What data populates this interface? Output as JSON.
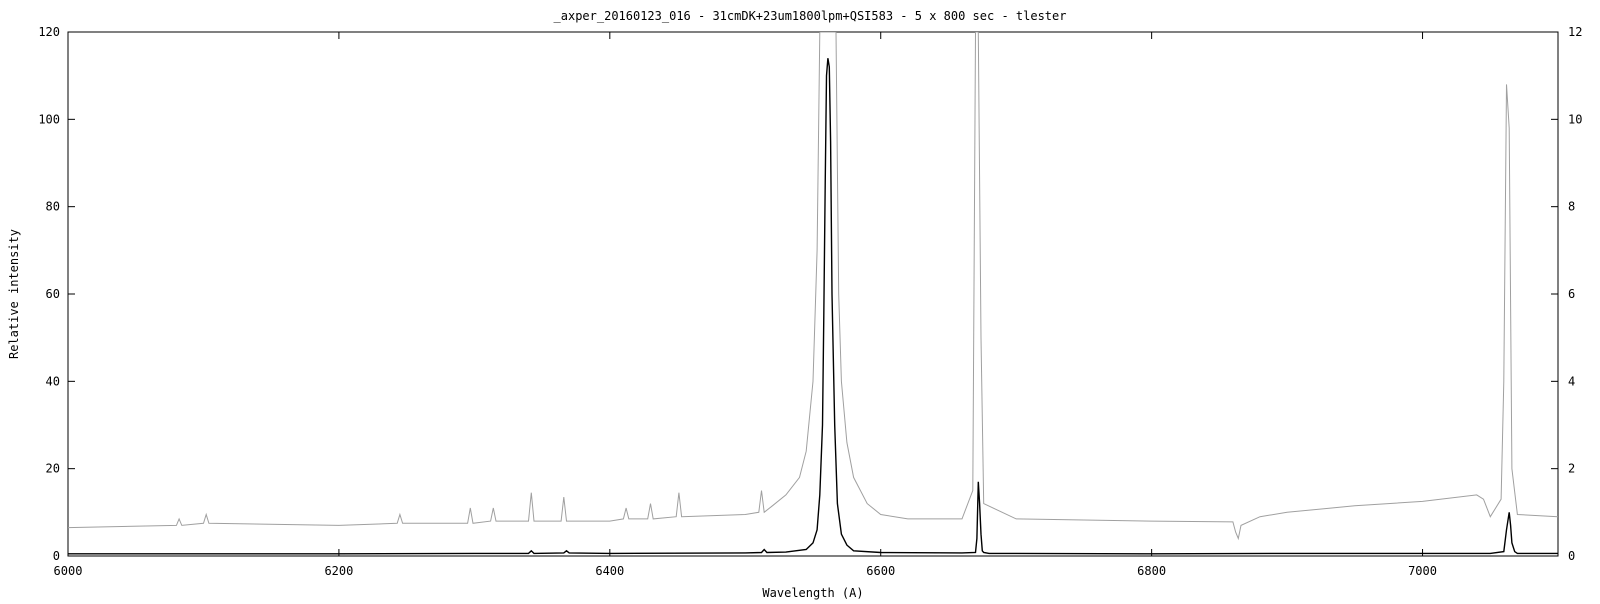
{
  "chart_data": {
    "type": "line",
    "title": "_axper_20160123_016 - 31cmDK+23um1800lpm+QSI583 - 5 x 800 sec - tlester",
    "xlabel": "Wavelength (A)",
    "ylabel": "Relative intensity",
    "xlim": [
      6000,
      7100
    ],
    "ylim": [
      0,
      120
    ],
    "y2lim": [
      0,
      12
    ],
    "x_ticks": [
      6000,
      6200,
      6400,
      6600,
      6800,
      7000
    ],
    "y_ticks": [
      0,
      20,
      40,
      60,
      80,
      100,
      120
    ],
    "y2_ticks": [
      0,
      2,
      4,
      6,
      8,
      10,
      12
    ],
    "grid": false,
    "legend": "none",
    "series": [
      {
        "color": "#000000",
        "axis": "left",
        "x": [
          6000,
          6100,
          6200,
          6300,
          6340,
          6342,
          6344,
          6366,
          6368,
          6370,
          6400,
          6500,
          6512,
          6514,
          6516,
          6530,
          6545,
          6550,
          6553,
          6555,
          6557,
          6558,
          6559,
          6560,
          6561,
          6562,
          6563,
          6564,
          6566,
          6568,
          6571,
          6575,
          6580,
          6600,
          6660,
          6670,
          6671,
          6672,
          6673,
          6674,
          6675,
          6676,
          6680,
          6800,
          6900,
          7000,
          7050,
          7060,
          7062,
          7064,
          7065,
          7066,
          7068,
          7070,
          7100
        ],
        "y": [
          0.5,
          0.5,
          0.5,
          0.6,
          0.6,
          1.2,
          0.6,
          0.7,
          1.2,
          0.7,
          0.6,
          0.7,
          0.8,
          1.5,
          0.8,
          0.9,
          1.5,
          3,
          6,
          14,
          30,
          55,
          85,
          110,
          114,
          112,
          95,
          60,
          30,
          12,
          5,
          2.5,
          1.2,
          0.8,
          0.7,
          0.8,
          4,
          17,
          12,
          5,
          1.2,
          0.8,
          0.6,
          0.5,
          0.6,
          0.6,
          0.6,
          1.0,
          6,
          10,
          7,
          3,
          1.0,
          0.6,
          0.6
        ]
      },
      {
        "color": "#a0a0a0",
        "axis": "right",
        "x": [
          6000,
          6080,
          6082,
          6084,
          6100,
          6102,
          6104,
          6200,
          6243,
          6245,
          6247,
          6295,
          6297,
          6299,
          6312,
          6314,
          6316,
          6340,
          6342,
          6344,
          6364,
          6366,
          6368,
          6400,
          6410,
          6412,
          6414,
          6428,
          6430,
          6432,
          6449,
          6451,
          6453,
          6500,
          6510,
          6512,
          6514,
          6520,
          6530,
          6540,
          6545,
          6550,
          6553,
          6555,
          6557,
          6559,
          6563,
          6565,
          6567,
          6569,
          6571,
          6575,
          6580,
          6590,
          6600,
          6620,
          6660,
          6668,
          6670,
          6672,
          6674,
          6676,
          6700,
          6800,
          6860,
          6862,
          6864,
          6866,
          6880,
          6900,
          6950,
          7000,
          7040,
          7045,
          7050,
          7058,
          7060,
          7062,
          7064,
          7066,
          7070,
          7100
        ],
        "y": [
          0.65,
          0.7,
          0.85,
          0.7,
          0.75,
          0.95,
          0.75,
          0.7,
          0.75,
          0.95,
          0.75,
          0.75,
          1.1,
          0.75,
          0.8,
          1.1,
          0.8,
          0.8,
          1.45,
          0.8,
          0.8,
          1.35,
          0.8,
          0.8,
          0.85,
          1.1,
          0.85,
          0.85,
          1.2,
          0.85,
          0.9,
          1.45,
          0.9,
          0.95,
          1.0,
          1.5,
          1.0,
          1.15,
          1.4,
          1.8,
          2.4,
          4,
          7,
          12,
          12,
          12,
          12,
          12,
          12,
          6,
          4,
          2.6,
          1.8,
          1.2,
          0.95,
          0.85,
          0.85,
          1.5,
          12,
          12,
          5,
          1.2,
          0.85,
          0.8,
          0.78,
          0.55,
          0.4,
          0.7,
          0.9,
          1.0,
          1.15,
          1.25,
          1.4,
          1.3,
          0.9,
          1.3,
          4,
          10.8,
          9.8,
          2,
          0.95,
          0.9
        ]
      }
    ]
  }
}
